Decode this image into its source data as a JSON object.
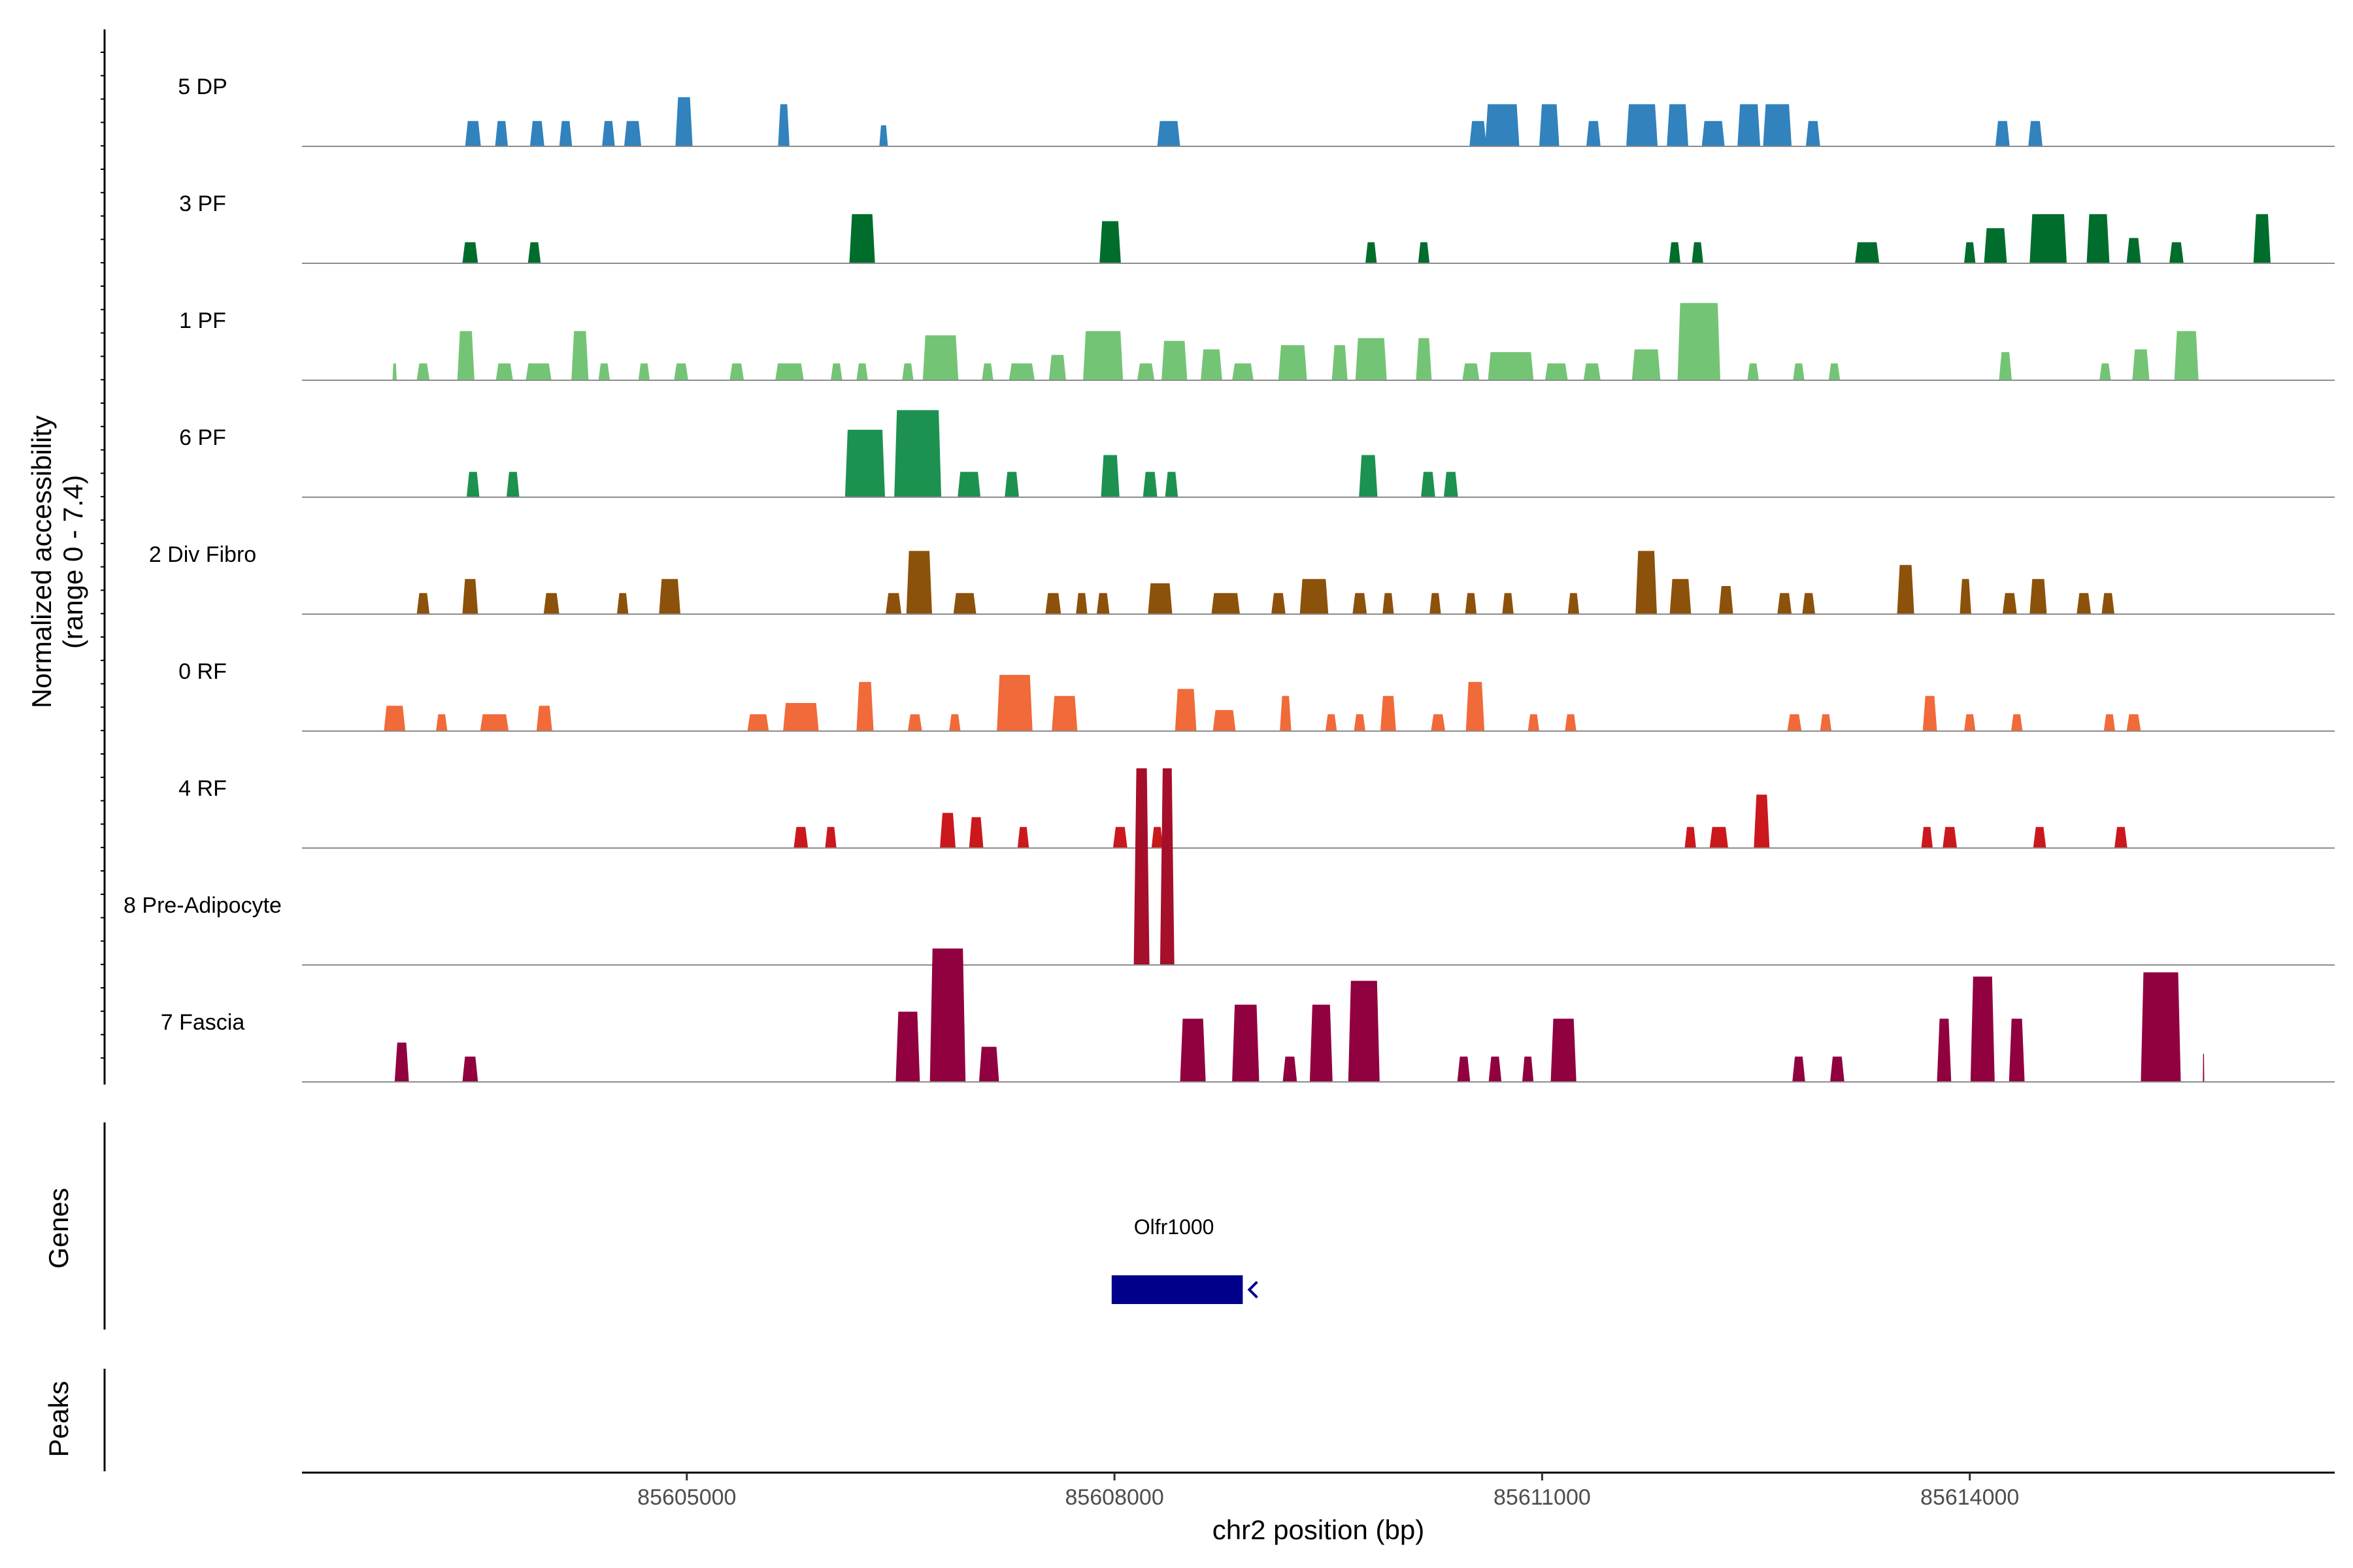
{
  "chart_data": {
    "type": "area",
    "title": "",
    "ylabel_line1": "Normalized accessibility",
    "ylabel_line2": "(range 0 - 7.4)",
    "y_range": [
      0,
      7.4
    ],
    "xlabel": "chr2 position (bp)",
    "xlim": [
      85602300,
      85616560
    ],
    "x_ticks": [
      85605000,
      85608000,
      85611000,
      85614000
    ],
    "x_tick_labels": [
      "85605000",
      "85608000",
      "85611000",
      "85614000"
    ],
    "panel_titles": {
      "genes": "Genes",
      "peaks": "Peaks"
    },
    "gene": {
      "name": "Olfr1000",
      "start": 85607980,
      "end": 85608900,
      "strand": "-",
      "color": "#00008B"
    },
    "tracks": [
      {
        "name": "5 DP",
        "color": "#3182BD",
        "peaks": [
          [
            85603500,
            110,
            0.18
          ],
          [
            85603700,
            90,
            0.18
          ],
          [
            85603950,
            100,
            0.18
          ],
          [
            85604150,
            90,
            0.18
          ],
          [
            85604450,
            90,
            0.18
          ],
          [
            85604620,
            120,
            0.18
          ],
          [
            85604980,
            120,
            0.35
          ],
          [
            85605680,
            80,
            0.3
          ],
          [
            85606380,
            60,
            0.15
          ],
          [
            85608380,
            160,
            0.18
          ],
          [
            85610550,
            120,
            0.18
          ],
          [
            85610720,
            240,
            0.3
          ],
          [
            85611050,
            140,
            0.3
          ],
          [
            85611360,
            100,
            0.18
          ],
          [
            85611700,
            220,
            0.3
          ],
          [
            85611950,
            150,
            0.3
          ],
          [
            85612200,
            160,
            0.18
          ],
          [
            85612450,
            160,
            0.3
          ],
          [
            85612650,
            200,
            0.3
          ],
          [
            85612900,
            100,
            0.18
          ],
          [
            85614230,
            100,
            0.18
          ],
          [
            85614460,
            100,
            0.18
          ]
        ]
      },
      {
        "name": "3 PF",
        "color": "#006D2C",
        "peaks": [
          [
            85603480,
            110,
            0.15
          ],
          [
            85603930,
            90,
            0.15
          ],
          [
            85606230,
            180,
            0.35
          ],
          [
            85607970,
            150,
            0.3
          ],
          [
            85609800,
            80,
            0.15
          ],
          [
            85610170,
            80,
            0.15
          ],
          [
            85611930,
            80,
            0.15
          ],
          [
            85612090,
            80,
            0.15
          ],
          [
            85613280,
            170,
            0.15
          ],
          [
            85614000,
            80,
            0.15
          ],
          [
            85614180,
            160,
            0.25
          ],
          [
            85614550,
            260,
            0.35
          ],
          [
            85614900,
            160,
            0.35
          ],
          [
            85615150,
            100,
            0.18
          ],
          [
            85615450,
            100,
            0.15
          ],
          [
            85616050,
            120,
            0.35
          ]
        ]
      },
      {
        "name": "1 PF",
        "color": "#74C476",
        "peaks": [
          [
            85602950,
            30,
            0.12
          ],
          [
            85603150,
            90,
            0.12
          ],
          [
            85603450,
            120,
            0.35
          ],
          [
            85603720,
            120,
            0.12
          ],
          [
            85603960,
            180,
            0.12
          ],
          [
            85604250,
            120,
            0.35
          ],
          [
            85604420,
            80,
            0.12
          ],
          [
            85604700,
            80,
            0.12
          ],
          [
            85604960,
            100,
            0.12
          ],
          [
            85605350,
            100,
            0.12
          ],
          [
            85605720,
            200,
            0.12
          ],
          [
            85606050,
            80,
            0.12
          ],
          [
            85606230,
            80,
            0.12
          ],
          [
            85606550,
            80,
            0.12
          ],
          [
            85606780,
            250,
            0.32
          ],
          [
            85607110,
            80,
            0.12
          ],
          [
            85607350,
            180,
            0.12
          ],
          [
            85607600,
            120,
            0.18
          ],
          [
            85607920,
            280,
            0.35
          ],
          [
            85608220,
            120,
            0.12
          ],
          [
            85608420,
            180,
            0.28
          ],
          [
            85608680,
            150,
            0.22
          ],
          [
            85608900,
            150,
            0.12
          ],
          [
            85609250,
            200,
            0.25
          ],
          [
            85609580,
            110,
            0.25
          ],
          [
            85609800,
            220,
            0.3
          ],
          [
            85610170,
            110,
            0.3
          ],
          [
            85610500,
            120,
            0.12
          ],
          [
            85610780,
            320,
            0.2
          ],
          [
            85611100,
            160,
            0.12
          ],
          [
            85611350,
            120,
            0.12
          ],
          [
            85611730,
            200,
            0.22
          ],
          [
            85612100,
            300,
            0.55
          ],
          [
            85612480,
            80,
            0.12
          ],
          [
            85612800,
            80,
            0.12
          ],
          [
            85613050,
            80,
            0.12
          ],
          [
            85614250,
            90,
            0.2
          ],
          [
            85614950,
            80,
            0.12
          ],
          [
            85615200,
            120,
            0.22
          ],
          [
            85615520,
            170,
            0.35
          ]
        ]
      },
      {
        "name": "6 PF",
        "color": "#1D9150",
        "peaks": [
          [
            85603500,
            90,
            0.18
          ],
          [
            85603780,
            90,
            0.18
          ],
          [
            85606250,
            280,
            0.48
          ],
          [
            85606620,
            330,
            0.62
          ],
          [
            85606980,
            160,
            0.18
          ],
          [
            85607280,
            100,
            0.18
          ],
          [
            85607970,
            130,
            0.3
          ],
          [
            85608250,
            100,
            0.18
          ],
          [
            85608400,
            90,
            0.18
          ],
          [
            85609780,
            130,
            0.3
          ],
          [
            85610200,
            100,
            0.18
          ],
          [
            85610360,
            100,
            0.18
          ]
        ]
      },
      {
        "name": "2 Div Fibro",
        "color": "#8C510A",
        "peaks": [
          [
            85603150,
            90,
            0.15
          ],
          [
            85603480,
            110,
            0.25
          ],
          [
            85604050,
            110,
            0.15
          ],
          [
            85604550,
            80,
            0.15
          ],
          [
            85604880,
            150,
            0.25
          ],
          [
            85606450,
            110,
            0.15
          ],
          [
            85606630,
            180,
            0.45
          ],
          [
            85606950,
            160,
            0.15
          ],
          [
            85607570,
            110,
            0.15
          ],
          [
            85607770,
            80,
            0.15
          ],
          [
            85607920,
            90,
            0.15
          ],
          [
            85608320,
            170,
            0.22
          ],
          [
            85608780,
            200,
            0.15
          ],
          [
            85609150,
            100,
            0.15
          ],
          [
            85609400,
            200,
            0.25
          ],
          [
            85609720,
            100,
            0.15
          ],
          [
            85609920,
            80,
            0.15
          ],
          [
            85610250,
            80,
            0.15
          ],
          [
            85610500,
            80,
            0.15
          ],
          [
            85610760,
            80,
            0.15
          ],
          [
            85611220,
            80,
            0.15
          ],
          [
            85611730,
            150,
            0.45
          ],
          [
            85611970,
            150,
            0.25
          ],
          [
            85612290,
            100,
            0.2
          ],
          [
            85612700,
            100,
            0.15
          ],
          [
            85612870,
            90,
            0.15
          ],
          [
            85613550,
            120,
            0.35
          ],
          [
            85613970,
            80,
            0.25
          ],
          [
            85614280,
            100,
            0.15
          ],
          [
            85614480,
            120,
            0.25
          ],
          [
            85614800,
            100,
            0.15
          ],
          [
            85614970,
            90,
            0.15
          ]
        ]
      },
      {
        "name": "0 RF",
        "color": "#F16A3A",
        "peaks": [
          [
            85602950,
            150,
            0.18
          ],
          [
            85603280,
            80,
            0.12
          ],
          [
            85603650,
            200,
            0.12
          ],
          [
            85604000,
            110,
            0.18
          ],
          [
            85605500,
            150,
            0.12
          ],
          [
            85605800,
            250,
            0.2
          ],
          [
            85606250,
            120,
            0.35
          ],
          [
            85606600,
            100,
            0.12
          ],
          [
            85606880,
            80,
            0.12
          ],
          [
            85607300,
            250,
            0.4
          ],
          [
            85607650,
            180,
            0.25
          ],
          [
            85608500,
            150,
            0.3
          ],
          [
            85608770,
            160,
            0.15
          ],
          [
            85609200,
            80,
            0.25
          ],
          [
            85609520,
            80,
            0.12
          ],
          [
            85609720,
            80,
            0.12
          ],
          [
            85609920,
            110,
            0.25
          ],
          [
            85610270,
            100,
            0.12
          ],
          [
            85610530,
            130,
            0.35
          ],
          [
            85610940,
            80,
            0.12
          ],
          [
            85611200,
            80,
            0.12
          ],
          [
            85612770,
            100,
            0.12
          ],
          [
            85612990,
            80,
            0.12
          ],
          [
            85613720,
            100,
            0.25
          ],
          [
            85614000,
            80,
            0.12
          ],
          [
            85614330,
            80,
            0.12
          ],
          [
            85614980,
            80,
            0.12
          ],
          [
            85615150,
            100,
            0.12
          ]
        ]
      },
      {
        "name": "4 RF",
        "color": "#CB181D",
        "peaks": [
          [
            85605800,
            100,
            0.15
          ],
          [
            85606010,
            80,
            0.15
          ],
          [
            85606830,
            110,
            0.25
          ],
          [
            85607030,
            100,
            0.22
          ],
          [
            85607360,
            80,
            0.15
          ],
          [
            85608040,
            100,
            0.15
          ],
          [
            85608300,
            80,
            0.15
          ],
          [
            85612040,
            80,
            0.15
          ],
          [
            85612240,
            130,
            0.15
          ],
          [
            85612540,
            110,
            0.38
          ],
          [
            85613700,
            80,
            0.15
          ],
          [
            85613860,
            100,
            0.15
          ],
          [
            85614490,
            90,
            0.15
          ],
          [
            85615060,
            90,
            0.15
          ]
        ]
      },
      {
        "name": "8 Pre-Adipocyte",
        "color": "#A50F2A",
        "peaks": [
          [
            85608190,
            110,
            1.4
          ],
          [
            85608370,
            100,
            1.4
          ]
        ]
      },
      {
        "name": "7 Fascia",
        "color": "#91003F",
        "peaks": [
          [
            85603000,
            100,
            0.28
          ],
          [
            85603480,
            110,
            0.18
          ],
          [
            85606550,
            170,
            0.5
          ],
          [
            85606830,
            250,
            0.95
          ],
          [
            85607120,
            140,
            0.25
          ],
          [
            85608550,
            180,
            0.45
          ],
          [
            85608920,
            190,
            0.55
          ],
          [
            85609230,
            100,
            0.18
          ],
          [
            85609450,
            160,
            0.55
          ],
          [
            85609750,
            220,
            0.72
          ],
          [
            85610450,
            90,
            0.18
          ],
          [
            85610670,
            90,
            0.18
          ],
          [
            85610900,
            80,
            0.18
          ],
          [
            85611150,
            180,
            0.45
          ],
          [
            85612800,
            90,
            0.18
          ],
          [
            85613070,
            100,
            0.18
          ],
          [
            85613820,
            100,
            0.45
          ],
          [
            85614090,
            170,
            0.75
          ],
          [
            85614330,
            110,
            0.45
          ],
          [
            85615340,
            280,
            0.78
          ],
          [
            85615640,
            10,
            0.2
          ]
        ]
      }
    ]
  }
}
